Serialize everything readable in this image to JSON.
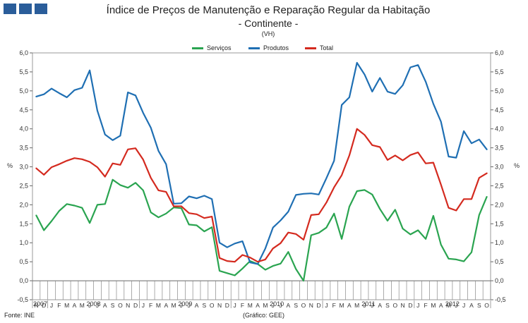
{
  "header": {
    "title": "Índice de Preços de Manutenção e Reparação Regular da Habitação",
    "subtitle": "- Continente -",
    "unit": "(VH)"
  },
  "footer": {
    "source": "Fonte: INE",
    "credit": "(Gráfico: GEE)"
  },
  "chart_data": {
    "type": "line",
    "title": "Índice de Preços de Manutenção e Reparação Regular da Habitação",
    "subtitle": "- Continente -",
    "ylabel": "%",
    "ylabel_right": "%",
    "ylim": [
      -0.5,
      6.0
    ],
    "yticks": [
      "-0,5",
      "0,0",
      "0,5",
      "1,0",
      "1,5",
      "2,0",
      "2,5",
      "3,0",
      "3,5",
      "4,0",
      "4,5",
      "5,0",
      "5,5",
      "6,0"
    ],
    "grid": false,
    "legend_position": "top-center",
    "categories": [
      "N",
      "D",
      "J",
      "F",
      "M",
      "A",
      "M",
      "J",
      "J",
      "A",
      "S",
      "O",
      "N",
      "D",
      "J",
      "F",
      "M",
      "A",
      "M",
      "J",
      "J",
      "A",
      "S",
      "O",
      "N",
      "D",
      "J",
      "F",
      "M",
      "A",
      "M",
      "J",
      "J",
      "A",
      "S",
      "O",
      "N",
      "D",
      "J",
      "F",
      "M",
      "A",
      "M",
      "J",
      "J",
      "A",
      "S",
      "O",
      "N",
      "D",
      "J",
      "F",
      "M",
      "A",
      "M",
      "J",
      "J",
      "A",
      "S",
      "O"
    ],
    "years": [
      {
        "label": "2007",
        "start": 0,
        "count": 2
      },
      {
        "label": "2008",
        "start": 2,
        "count": 12
      },
      {
        "label": "2009",
        "start": 14,
        "count": 12
      },
      {
        "label": "2010",
        "start": 26,
        "count": 12
      },
      {
        "label": "2011",
        "start": 38,
        "count": 12
      },
      {
        "label": "2012",
        "start": 50,
        "count": 10
      }
    ],
    "series": [
      {
        "name": "Serviços",
        "color": "#2aa450",
        "values": [
          1.72,
          1.33,
          1.57,
          1.84,
          2.02,
          1.98,
          1.92,
          1.52,
          2.0,
          2.02,
          2.66,
          2.52,
          2.45,
          2.58,
          2.38,
          1.8,
          1.67,
          1.77,
          1.93,
          1.91,
          1.48,
          1.46,
          1.3,
          1.41,
          0.26,
          0.2,
          0.14,
          0.32,
          0.52,
          0.44,
          0.29,
          0.39,
          0.45,
          0.76,
          0.31,
          0.0,
          1.2,
          1.26,
          1.4,
          1.77,
          1.1,
          1.95,
          2.36,
          2.39,
          2.27,
          1.89,
          1.58,
          1.87,
          1.37,
          1.22,
          1.33,
          1.1,
          1.71,
          0.95,
          0.58,
          0.56,
          0.51,
          0.75,
          1.73,
          2.21
        ]
      },
      {
        "name": "Produtos",
        "color": "#1f6fb3",
        "values": [
          4.85,
          4.91,
          5.06,
          4.94,
          4.83,
          5.02,
          5.08,
          5.54,
          4.48,
          3.85,
          3.7,
          3.82,
          4.96,
          4.88,
          4.42,
          4.03,
          3.42,
          3.07,
          2.03,
          2.04,
          2.22,
          2.17,
          2.24,
          2.15,
          1.0,
          0.88,
          0.98,
          1.04,
          0.48,
          0.44,
          0.85,
          1.4,
          1.59,
          1.82,
          2.26,
          2.29,
          2.3,
          2.27,
          2.7,
          3.16,
          4.63,
          4.83,
          5.74,
          5.43,
          4.98,
          5.34,
          4.98,
          4.92,
          5.15,
          5.62,
          5.68,
          5.24,
          4.66,
          4.19,
          3.27,
          3.24,
          3.94,
          3.62,
          3.72,
          3.46
        ]
      },
      {
        "name": "Total",
        "color": "#d42a1f",
        "values": [
          2.96,
          2.79,
          2.99,
          3.07,
          3.16,
          3.23,
          3.2,
          3.13,
          2.99,
          2.74,
          3.09,
          3.05,
          3.46,
          3.49,
          3.19,
          2.71,
          2.38,
          2.34,
          1.96,
          1.96,
          1.78,
          1.75,
          1.65,
          1.69,
          0.6,
          0.52,
          0.5,
          0.68,
          0.61,
          0.5,
          0.56,
          0.85,
          0.99,
          1.27,
          1.23,
          1.08,
          1.73,
          1.75,
          2.06,
          2.46,
          2.78,
          3.3,
          4.0,
          3.84,
          3.57,
          3.52,
          3.18,
          3.3,
          3.17,
          3.31,
          3.38,
          3.09,
          3.11,
          2.53,
          1.92,
          1.85,
          2.15,
          2.15,
          2.71,
          2.83
        ]
      }
    ]
  }
}
